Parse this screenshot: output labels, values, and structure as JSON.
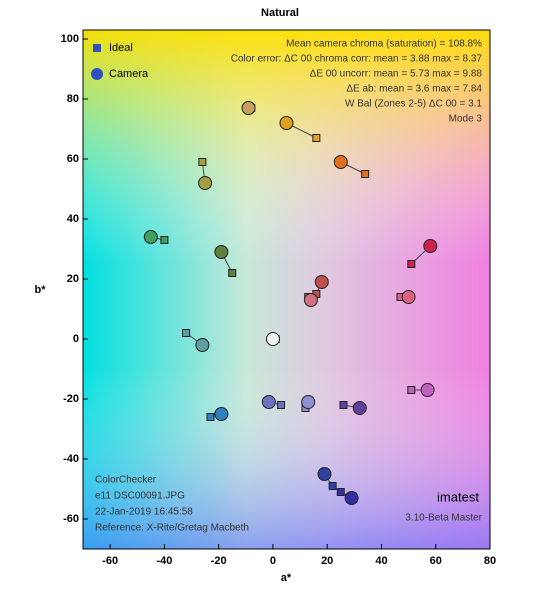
{
  "chart_data": {
    "type": "scatter",
    "title": "Natural",
    "x_label": "a*",
    "y_label": "b*",
    "xlim": [
      -70,
      80
    ],
    "ylim": [
      -70,
      103
    ],
    "xticks": [
      -60,
      -40,
      -20,
      0,
      20,
      40,
      60,
      80
    ],
    "yticks": [
      -60,
      -40,
      -20,
      0,
      20,
      40,
      60,
      80,
      100
    ],
    "point_colors": [
      "#c8a060",
      "#e0a020",
      "#e07020",
      "#a0a040",
      "#40a060",
      "#608040",
      "#d02050",
      "#c05050",
      "#d07080",
      "#e06080",
      "#f0f0f0",
      "#60a0a0",
      "#c060c0",
      "#7070c0",
      "#9090d0",
      "#6040a0",
      "#3080c0",
      "#3040a0",
      "#3030a0"
    ],
    "series": [
      {
        "name": "Ideal",
        "marker": "square",
        "color": "#3050c0",
        "x": [
          -8,
          16,
          34,
          -26,
          -40,
          -15,
          51,
          16,
          13,
          47,
          1,
          -32,
          51,
          3,
          12,
          26,
          -23,
          22,
          25
        ],
        "y": [
          77,
          67,
          55,
          59,
          33,
          22,
          25,
          15,
          14,
          14,
          0,
          2,
          -17,
          -22,
          -23,
          -22,
          -26,
          -49,
          -51
        ]
      },
      {
        "name": "Camera",
        "marker": "circle",
        "color": "#3050c0",
        "x": [
          -9,
          5,
          25,
          -25,
          -45,
          -19,
          58,
          18,
          14,
          50,
          0,
          -26,
          57,
          -1.5,
          13,
          32,
          -19,
          19,
          29
        ],
        "y": [
          77,
          72,
          59,
          52,
          34,
          29,
          31,
          19,
          13,
          14,
          0,
          -2,
          -17,
          -21,
          -21,
          -23,
          -25,
          -45,
          -53
        ]
      }
    ],
    "annotations": [
      "Mean camera chroma (saturation) = 108.8%",
      "Color error: ΔC 00 chroma corr: mean = 3.88  max = 8.37",
      "ΔE 00 uncorr: mean = 5.73  max = 9.88",
      "ΔE ab: mean = 3.6  max = 7.84",
      "W Bal (Zones 2-5) ΔC 00 = 3.1",
      "Mode 3"
    ],
    "footer_left": [
      "ColorChecker",
      "e11 DSC00091.JPG",
      "22-Jan-2019 16:45:58",
      "Reference: X-Rite/Gretag Macbeth"
    ],
    "footer_right": [
      "imatest",
      "3.10-Beta  Master"
    ]
  }
}
